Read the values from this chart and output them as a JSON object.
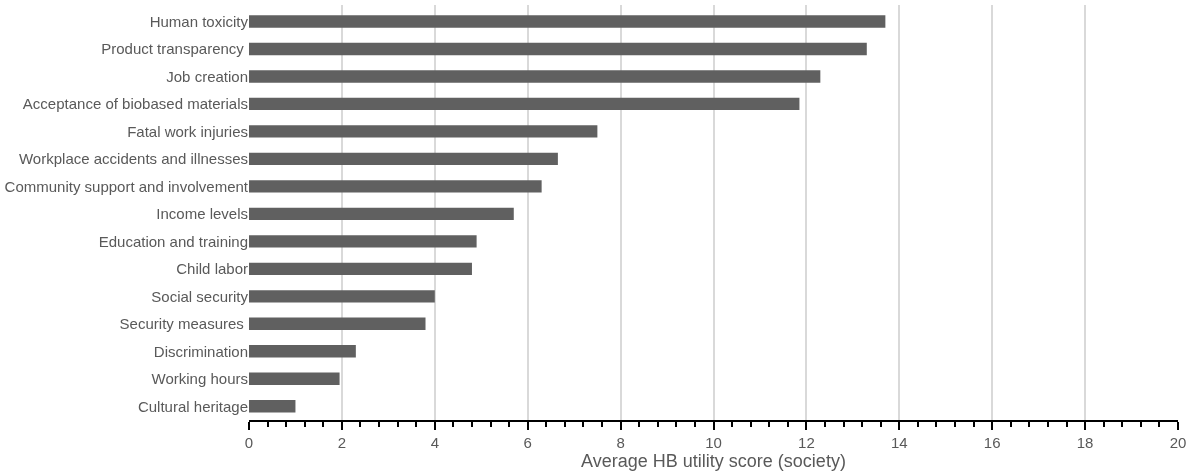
{
  "chart_data": {
    "type": "bar",
    "orientation": "horizontal",
    "xlabel": "Average HB utility score (society)",
    "categories": [
      "Human toxicity",
      "Product transparency ",
      "Job creation",
      "Acceptance of biobased materials",
      "Fatal work injuries",
      "Workplace accidents and illnesses",
      "Community support and involvement",
      "Income levels",
      "Education and training",
      "Child labor",
      "Social security",
      "Security measures ",
      "Discrimination",
      "Working hours",
      "Cultural heritage"
    ],
    "values": [
      13.7,
      13.3,
      12.3,
      11.85,
      7.5,
      6.65,
      6.3,
      5.7,
      4.9,
      4.8,
      4.0,
      3.8,
      2.3,
      1.95,
      1.0
    ],
    "color": "#606060",
    "xlim": [
      0,
      20
    ],
    "xticks": [
      0,
      2,
      4,
      6,
      8,
      10,
      12,
      14,
      16,
      18,
      20
    ],
    "grid": "x",
    "legend": false
  }
}
